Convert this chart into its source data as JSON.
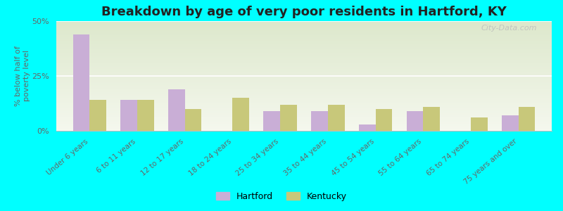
{
  "title": "Breakdown by age of very poor residents in Hartford, KY",
  "ylabel": "% below half of\npoverty level",
  "categories": [
    "Under 6 years",
    "6 to 11 years",
    "12 to 17 years",
    "18 to 24 years",
    "25 to 34 years",
    "35 to 44 years",
    "45 to 54 years",
    "55 to 64 years",
    "65 to 74 years",
    "75 years and over"
  ],
  "hartford_values": [
    44,
    14,
    19,
    0,
    9,
    9,
    3,
    9,
    0,
    7
  ],
  "kentucky_values": [
    14,
    14,
    10,
    15,
    12,
    12,
    10,
    11,
    6,
    11
  ],
  "hartford_color": "#c9aed6",
  "kentucky_color": "#c8c87a",
  "background_top": "#dde8cc",
  "background_bottom": "#f5f8ee",
  "outer_bg": "#00ffff",
  "ylim": [
    0,
    50
  ],
  "yticks": [
    0,
    25,
    50
  ],
  "ytick_labels": [
    "0%",
    "25%",
    "50%"
  ],
  "title_fontsize": 13,
  "label_fontsize": 7.5,
  "watermark": "City-Data.com",
  "bar_width": 0.35
}
